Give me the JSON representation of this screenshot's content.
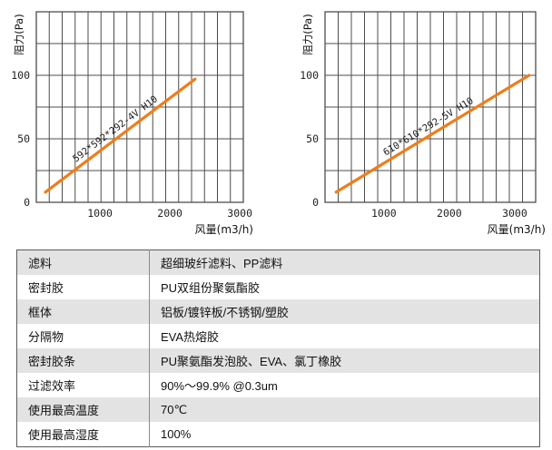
{
  "chart_data": [
    {
      "type": "line",
      "title": "",
      "ylabel": "阻力(Pa)",
      "xlabel": "风量(m3/h)",
      "xlim": [
        90,
        3050
      ],
      "ylim": [
        0,
        150
      ],
      "xticks": [
        1000,
        2000,
        3000
      ],
      "yticks": [
        0,
        50,
        100
      ],
      "grid": true,
      "grid_columns": 16,
      "grid_row_step": 25,
      "legend_position": "on-line",
      "series": [
        {
          "name": "592*592*292-4V H10",
          "x": [
            220,
            2360
          ],
          "y": [
            8,
            97
          ],
          "color": "#ef7d1a"
        }
      ]
    },
    {
      "type": "line",
      "title": "",
      "ylabel": "阻力(Pa)",
      "xlabel": "风量(m3/h)",
      "xlim": [
        100,
        3320
      ],
      "ylim": [
        0,
        150
      ],
      "xticks": [
        1000,
        2000,
        3000
      ],
      "yticks": [
        0,
        50,
        100
      ],
      "grid": true,
      "grid_columns": 16,
      "grid_row_step": 25,
      "legend_position": "on-line",
      "series": [
        {
          "name": "610*610*292-5V H10",
          "x": [
            270,
            3220
          ],
          "y": [
            8,
            100
          ],
          "color": "#ef7d1a"
        }
      ]
    }
  ],
  "table": {
    "rows": [
      {
        "label": "滤料",
        "value": "超细玻纤滤料、PP滤料"
      },
      {
        "label": "密封胶",
        "value": "PU双组份聚氨酯胶"
      },
      {
        "label": "框体",
        "value": "铝板/镀锌板/不锈钢/塑胶"
      },
      {
        "label": "分隔物",
        "value": "EVA热熔胶"
      },
      {
        "label": "密封胶条",
        "value": "PU聚氨酯发泡胶、EVA、氯丁橡胶"
      },
      {
        "label": "过滤效率",
        "value": "90%～99.9% @0.3um"
      },
      {
        "label": "使用最高温度",
        "value": "70℃"
      },
      {
        "label": "使用最高湿度",
        "value": "100%"
      }
    ]
  },
  "colors": {
    "accent_orange": "#ef7d1a",
    "grid": "#4d4d4d",
    "tick_text": "#222222",
    "table_alt_row": "#e3e3e3",
    "table_border": "#5a5a5a",
    "text": "#111111"
  }
}
